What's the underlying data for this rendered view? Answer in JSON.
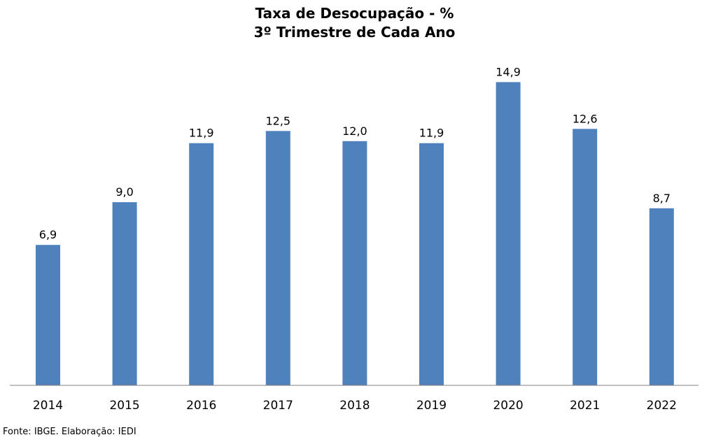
{
  "chart_data": {
    "type": "bar",
    "title": "Taxa de Desocupação - %",
    "subtitle": "3º Trimestre de Cada Ano",
    "categories": [
      "2014",
      "2015",
      "2016",
      "2017",
      "2018",
      "2019",
      "2020",
      "2021",
      "2022"
    ],
    "values": [
      6.9,
      9.0,
      11.9,
      12.5,
      12.0,
      11.9,
      14.9,
      12.6,
      8.7
    ],
    "data_labels": [
      "6,9",
      "9,0",
      "11,9",
      "12,5",
      "12,0",
      "11,9",
      "14,9",
      "12,6",
      "8,7"
    ],
    "xlabel": "",
    "ylabel": "",
    "ylim": [
      0,
      16
    ],
    "grid": false,
    "legend": "none",
    "bar_color": "#4f81bd",
    "axis_color": "#808080"
  },
  "source_note": "Fonte: IBGE. Elaboração: IEDI"
}
